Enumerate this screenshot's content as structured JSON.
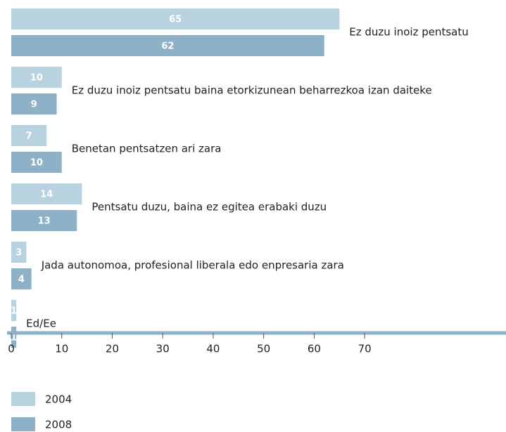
{
  "chart_data": {
    "type": "bar",
    "orientation": "horizontal",
    "categories": [
      "Ez duzu inoiz pentsatu",
      "Ez duzu inoiz pentsatu baina etorkizunean beharrezkoa izan daiteke",
      "Benetan pentsatzen ari zara",
      "Pentsatu duzu, baina ez egitea erabaki duzu",
      "Jada autonomoa, profesional liberala edo enpresaria zara",
      "Ed/Ee"
    ],
    "series": [
      {
        "name": "2004",
        "color": "#b8d3df",
        "values": [
          65,
          10,
          7,
          14,
          3,
          1
        ]
      },
      {
        "name": "2008",
        "color": "#8db2c7",
        "values": [
          62,
          9,
          10,
          13,
          4,
          1
        ]
      }
    ],
    "xlim": [
      0,
      98
    ],
    "xticks": [
      0,
      10,
      20,
      30,
      40,
      50,
      60,
      70
    ]
  }
}
